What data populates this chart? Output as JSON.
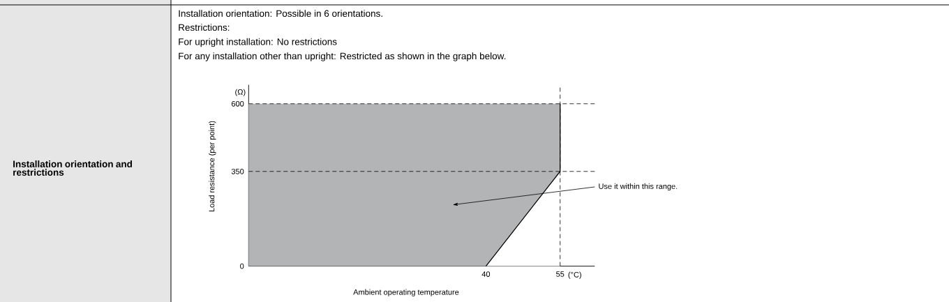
{
  "chart_data": {
    "type": "area",
    "title": "Installation orientation: Possible in 6 orientations.",
    "xlabel": "Ambient operating temperature",
    "ylabel": "Load resistance (per point)",
    "xlim": [
      -8,
      62
    ],
    "ylim": [
      0,
      670
    ],
    "xticks": [
      40,
      55
    ],
    "yticks": [
      0,
      350,
      600
    ],
    "grid": false,
    "stacked": true,
    "series": [
      {
        "type": "area",
        "color": "#ffffff",
        "x": [
          -8,
          40,
          55
        ],
        "values": [
          0,
          0,
          350
        ]
      },
      {
        "type": "area",
        "color": "#b3b4b6",
        "x": [
          -8,
          40,
          55
        ],
        "values": [
          600,
          600,
          250
        ]
      },
      {
        "type": "line",
        "color": "#000000",
        "x": [
          40,
          55,
          55
        ],
        "values": [
          0,
          350,
          600
        ]
      }
    ],
    "ref_lines": [
      {
        "axis": "y",
        "value": 600,
        "line_style": "dashed"
      },
      {
        "axis": "y",
        "value": 350,
        "line_style": "dashed"
      },
      {
        "axis": "x",
        "value": 55,
        "line_style": "dashed"
      }
    ],
    "annotations": [
      "Restrictions:",
      "For upright installation: No restrictions",
      "For any installation other than upright: Restricted as shown in the graph below.",
      "Installation orientation and restrictions",
      "(Ω)",
      "(°C)",
      "Use it within this range."
    ]
  }
}
